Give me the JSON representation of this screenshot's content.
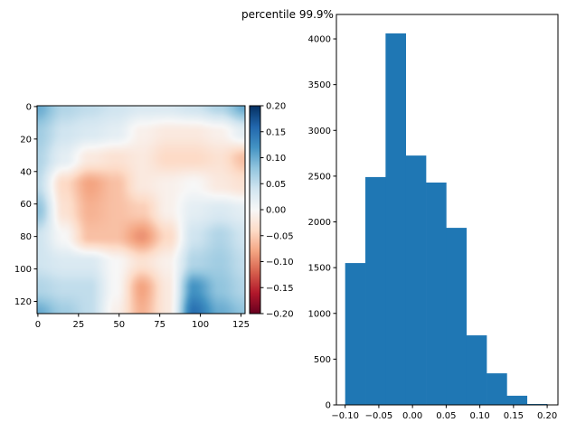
{
  "title": "percentile 99.9%",
  "chart_data": [
    {
      "type": "heatmap",
      "colormap": "RdBu",
      "grid_rows": [
        0,
        16,
        32,
        48,
        64,
        80,
        96,
        112,
        127
      ],
      "grid_cols": [
        0,
        16,
        32,
        48,
        64,
        80,
        96,
        112,
        127
      ],
      "values_approx": [
        [
          0.1,
          0.06,
          0.05,
          0.04,
          0.03,
          0.03,
          0.04,
          0.06,
          0.1
        ],
        [
          0.07,
          0.04,
          0.03,
          0.02,
          -0.01,
          -0.02,
          -0.02,
          -0.01,
          0.02
        ],
        [
          0.06,
          0.02,
          -0.02,
          -0.03,
          -0.02,
          -0.04,
          -0.04,
          -0.03,
          -0.06
        ],
        [
          0.05,
          -0.04,
          -0.08,
          -0.06,
          -0.02,
          -0.01,
          0.0,
          -0.02,
          -0.03
        ],
        [
          0.08,
          -0.03,
          -0.07,
          -0.06,
          -0.05,
          -0.01,
          0.02,
          0.03,
          0.02
        ],
        [
          0.04,
          0.0,
          -0.06,
          -0.06,
          -0.09,
          -0.04,
          0.04,
          0.06,
          0.04
        ],
        [
          0.04,
          0.03,
          0.03,
          0.0,
          -0.03,
          -0.01,
          0.06,
          0.07,
          0.05
        ],
        [
          0.06,
          0.05,
          0.05,
          0.0,
          -0.08,
          -0.02,
          0.12,
          0.08,
          0.06
        ],
        [
          0.1,
          0.07,
          0.05,
          -0.01,
          -0.07,
          -0.02,
          0.15,
          0.1,
          0.08
        ]
      ],
      "image_size": [
        128,
        128
      ],
      "xlim": [
        -0.5,
        127.5
      ],
      "ylim": [
        127.5,
        -0.5
      ],
      "xticks": [
        "0",
        "25",
        "50",
        "75",
        "100",
        "125"
      ],
      "xtick_values": [
        0,
        25,
        50,
        75,
        100,
        125
      ],
      "yticks": [
        "0",
        "20",
        "40",
        "60",
        "80",
        "100",
        "120"
      ],
      "ytick_values": [
        0,
        20,
        40,
        60,
        80,
        100,
        120
      ],
      "colorbar": {
        "range": [
          -0.2,
          0.2
        ],
        "ticks": [
          "-0.20",
          "-0.15",
          "-0.10",
          "-0.05",
          "0.00",
          "0.05",
          "0.10",
          "0.15",
          "0.20"
        ],
        "tick_values": [
          -0.2,
          -0.15,
          -0.1,
          -0.05,
          0,
          0.05,
          0.1,
          0.15,
          0.2
        ],
        "stops": [
          "#67001f",
          "#b2182b",
          "#d6604d",
          "#f4a582",
          "#fddbc7",
          "#f7f7f7",
          "#d1e5f0",
          "#92c5de",
          "#4393c3",
          "#2166ac",
          "#053061"
        ]
      }
    },
    {
      "type": "bar",
      "subtype": "histogram",
      "bin_edges": [
        -0.1,
        -0.07,
        -0.04,
        -0.01,
        0.02,
        0.05,
        0.08,
        0.11,
        0.14,
        0.17,
        0.2
      ],
      "values": [
        1550,
        2490,
        4060,
        2725,
        2430,
        1935,
        760,
        345,
        100,
        10
      ],
      "color": "#1f77b4",
      "xlim": [
        -0.113,
        0.216
      ],
      "ylim": [
        0,
        4267
      ],
      "xticks": [
        "−0.10",
        "−0.05",
        "0.00",
        "0.05",
        "0.10",
        "0.15",
        "0.20"
      ],
      "xtick_values": [
        -0.1,
        -0.05,
        0,
        0.05,
        0.1,
        0.15,
        0.2
      ],
      "yticks": [
        "0",
        "500",
        "1000",
        "1500",
        "2000",
        "2500",
        "3000",
        "3500",
        "4000"
      ],
      "ytick_values": [
        0,
        500,
        1000,
        1500,
        2000,
        2500,
        3000,
        3500,
        4000
      ]
    }
  ]
}
